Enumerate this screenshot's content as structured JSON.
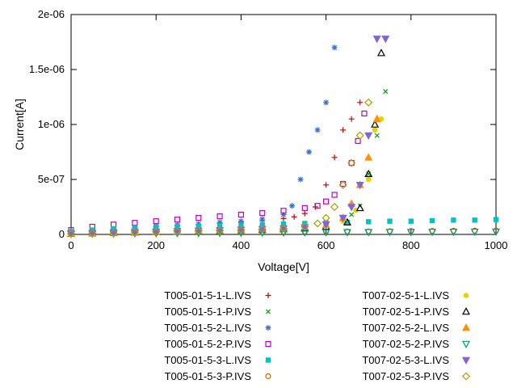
{
  "chart_data": {
    "type": "scatter",
    "title": "",
    "xlabel": "Voltage[V]",
    "ylabel": "Current[A]",
    "xlim": [
      0,
      1000
    ],
    "ylim": [
      0,
      2e-06
    ],
    "x_ticks": [
      0,
      200,
      400,
      600,
      800,
      1000
    ],
    "x_tick_labels": [
      "0",
      "200",
      "400",
      "600",
      "800",
      "1000"
    ],
    "y_ticks": [
      0,
      5e-07,
      1e-06,
      1.5e-06,
      2e-06
    ],
    "y_tick_labels": [
      "0",
      "5e-07",
      "1e-06",
      "1.5e-06",
      "2e-06"
    ],
    "grid": false,
    "legend_position": "below plot, two columns",
    "series": [
      {
        "name": "T005-01-5-1-L.IVS",
        "marker": "plus",
        "color": "#cc0000",
        "x": [
          0,
          50,
          100,
          150,
          200,
          250,
          300,
          350,
          400,
          450,
          500,
          525,
          550,
          575,
          600,
          620,
          640,
          660,
          680
        ],
        "y": [
          2e-08,
          3.5e-08,
          5e-08,
          6e-08,
          7e-08,
          8e-08,
          9e-08,
          1e-07,
          1.1e-07,
          1.25e-07,
          1.45e-07,
          1.6e-07,
          1.9e-07,
          2.5e-07,
          4.5e-07,
          7e-07,
          9.5e-07,
          1.05e-06,
          1.2e-06
        ]
      },
      {
        "name": "T005-01-5-1-P.IVS",
        "marker": "cross",
        "color": "#00a400",
        "x": [
          0,
          50,
          100,
          150,
          200,
          250,
          300,
          350,
          400,
          450,
          500,
          550,
          600,
          640,
          660,
          680,
          700,
          720,
          740
        ],
        "y": [
          1e-08,
          2e-08,
          3e-08,
          3.5e-08,
          4e-08,
          4.5e-08,
          5e-08,
          5.5e-08,
          6e-08,
          7e-08,
          8e-08,
          9e-08,
          1.1e-07,
          1.4e-07,
          1.8e-07,
          2.6e-07,
          5.5e-07,
          9e-07,
          1.3e-06
        ]
      },
      {
        "name": "T005-01-5-2-L.IVS",
        "marker": "asterisk",
        "color": "#3d6fd3",
        "x": [
          0,
          50,
          100,
          150,
          200,
          250,
          300,
          350,
          400,
          450,
          500,
          520,
          540,
          560,
          580,
          600,
          620
        ],
        "y": [
          2e-08,
          3.5e-08,
          5e-08,
          6.5e-08,
          7.5e-08,
          8.5e-08,
          9.5e-08,
          1.1e-07,
          1.2e-07,
          1.4e-07,
          1.8e-07,
          2.6e-07,
          5e-07,
          7.5e-07,
          9.5e-07,
          1.2e-06,
          1.7e-06
        ]
      },
      {
        "name": "T005-01-5-2-P.IVS",
        "marker": "square-open",
        "color": "#c000c0",
        "x": [
          0,
          50,
          100,
          150,
          200,
          250,
          300,
          350,
          400,
          450,
          500,
          550,
          580,
          600,
          620,
          640,
          660,
          675,
          690
        ],
        "y": [
          4e-08,
          7e-08,
          9e-08,
          1.05e-07,
          1.2e-07,
          1.35e-07,
          1.5e-07,
          1.65e-07,
          1.8e-07,
          1.95e-07,
          2.15e-07,
          2.4e-07,
          2.6e-07,
          3e-07,
          3.6e-07,
          4.6e-07,
          6.5e-07,
          8.5e-07,
          1.1e-06
        ]
      },
      {
        "name": "T005-01-5-3-L.IVS",
        "marker": "square-filled",
        "color": "#00c4c4",
        "x": [
          0,
          50,
          100,
          150,
          200,
          250,
          300,
          350,
          400,
          450,
          500,
          550,
          600,
          650,
          700,
          750,
          800,
          850,
          900,
          950,
          1000
        ],
        "y": [
          2.5e-08,
          4e-08,
          5e-08,
          6e-08,
          6.5e-08,
          7e-08,
          7.5e-08,
          8e-08,
          8.5e-08,
          9e-08,
          9.5e-08,
          1e-07,
          1.05e-07,
          1.1e-07,
          1.15e-07,
          1.2e-07,
          1.2e-07,
          1.25e-07,
          1.3e-07,
          1.3e-07,
          1.35e-07
        ]
      },
      {
        "name": "T005-01-5-3-P.IVS",
        "marker": "circle-open",
        "color": "#c46200",
        "x": [
          0,
          50,
          100,
          150,
          200,
          250,
          300,
          350,
          400,
          450,
          500,
          550,
          600,
          650,
          700,
          750,
          800,
          850,
          900,
          950,
          1000
        ],
        "y": [
          6e-09,
          9e-09,
          1.1e-08,
          1.3e-08,
          1.5e-08,
          1.7e-08,
          1.8e-08,
          2e-08,
          2.1e-08,
          2.2e-08,
          2.4e-08,
          2.5e-08,
          2.6e-08,
          2.7e-08,
          2.8e-08,
          3e-08,
          3.1e-08,
          3.2e-08,
          3.3e-08,
          3.4e-08,
          3.5e-08
        ]
      },
      {
        "name": "T007-02-5-1-L.IVS",
        "marker": "circle-filled",
        "color": "#e3d400",
        "x": [
          0,
          50,
          100,
          150,
          200,
          250,
          300,
          350,
          400,
          450,
          500,
          550,
          600,
          640,
          670,
          700,
          715,
          730
        ],
        "y": [
          8e-09,
          1.2e-08,
          1.6e-08,
          2e-08,
          2.4e-08,
          2.8e-08,
          3.2e-08,
          3.6e-08,
          4e-08,
          4.5e-08,
          5e-08,
          6e-08,
          8e-08,
          1.2e-07,
          2.2e-07,
          5e-07,
          9.5e-07,
          1.05e-06
        ]
      },
      {
        "name": "T007-02-5-1-P.IVS",
        "marker": "triangle-up-open",
        "color": "#000000",
        "x": [
          0,
          50,
          100,
          150,
          200,
          250,
          300,
          350,
          400,
          450,
          500,
          550,
          600,
          650,
          680,
          700,
          715,
          730
        ],
        "y": [
          6e-09,
          1e-08,
          1.4e-08,
          1.8e-08,
          2.2e-08,
          2.6e-08,
          3e-08,
          3.4e-08,
          3.8e-08,
          4.2e-08,
          4.8e-08,
          5.5e-08,
          7e-08,
          1.1e-07,
          2.4e-07,
          5.5e-07,
          1e-06,
          1.65e-06
        ]
      },
      {
        "name": "T007-02-5-2-L.IVS",
        "marker": "triangle-up-filled",
        "color": "#ff9000",
        "x": [
          0,
          50,
          100,
          150,
          200,
          250,
          300,
          350,
          400,
          450,
          500,
          550,
          600,
          640,
          660,
          680,
          700,
          720
        ],
        "y": [
          7e-09,
          1.1e-08,
          1.5e-08,
          1.9e-08,
          2.3e-08,
          2.7e-08,
          3.1e-08,
          3.5e-08,
          4e-08,
          4.6e-08,
          5.2e-08,
          6.2e-08,
          8.5e-08,
          1.5e-07,
          2.8e-07,
          4.5e-07,
          7e-07,
          1.05e-06
        ]
      },
      {
        "name": "T007-02-5-2-P.IVS",
        "marker": "triangle-down-open",
        "color": "#009e73",
        "x": [
          0,
          50,
          100,
          150,
          200,
          250,
          300,
          350,
          400,
          450,
          500,
          550,
          600,
          650,
          700,
          750,
          800,
          850,
          900,
          950,
          1000
        ],
        "y": [
          4e-09,
          6e-09,
          8e-09,
          1e-08,
          1.1e-08,
          1.2e-08,
          1.3e-08,
          1.4e-08,
          1.5e-08,
          1.6e-08,
          1.7e-08,
          1.8e-08,
          1.9e-08,
          2e-08,
          2.1e-08,
          2.2e-08,
          2.2e-08,
          2.3e-08,
          2.4e-08,
          2.4e-08,
          2.5e-08
        ]
      },
      {
        "name": "T007-02-5-3-L.IVS",
        "marker": "triangle-down-filled",
        "color": "#8064d8",
        "x": [
          0,
          50,
          100,
          150,
          200,
          250,
          300,
          350,
          400,
          450,
          500,
          550,
          600,
          640,
          660,
          680,
          700,
          720,
          740
        ],
        "y": [
          8e-09,
          1.3e-08,
          1.8e-08,
          2.2e-08,
          2.6e-08,
          3e-08,
          3.4e-08,
          3.8e-08,
          4.3e-08,
          4.8e-08,
          5.5e-08,
          6.5e-08,
          9e-08,
          1.5e-07,
          2.5e-07,
          4.5e-07,
          9e-07,
          1.78e-06,
          1.78e-06
        ]
      },
      {
        "name": "T007-02-5-3-P.IVS",
        "marker": "diamond-open",
        "color": "#ada000",
        "x": [
          0,
          50,
          100,
          150,
          200,
          250,
          300,
          350,
          400,
          450,
          500,
          550,
          580,
          600,
          620,
          640,
          660,
          680,
          700
        ],
        "y": [
          7e-09,
          1.1e-08,
          1.5e-08,
          1.9e-08,
          2.3e-08,
          2.7e-08,
          3.1e-08,
          3.6e-08,
          4.1e-08,
          4.7e-08,
          5.5e-08,
          7e-08,
          1e-07,
          1.5e-07,
          2.5e-07,
          4.5e-07,
          6.5e-07,
          9e-07,
          1.2e-06
        ]
      }
    ]
  }
}
